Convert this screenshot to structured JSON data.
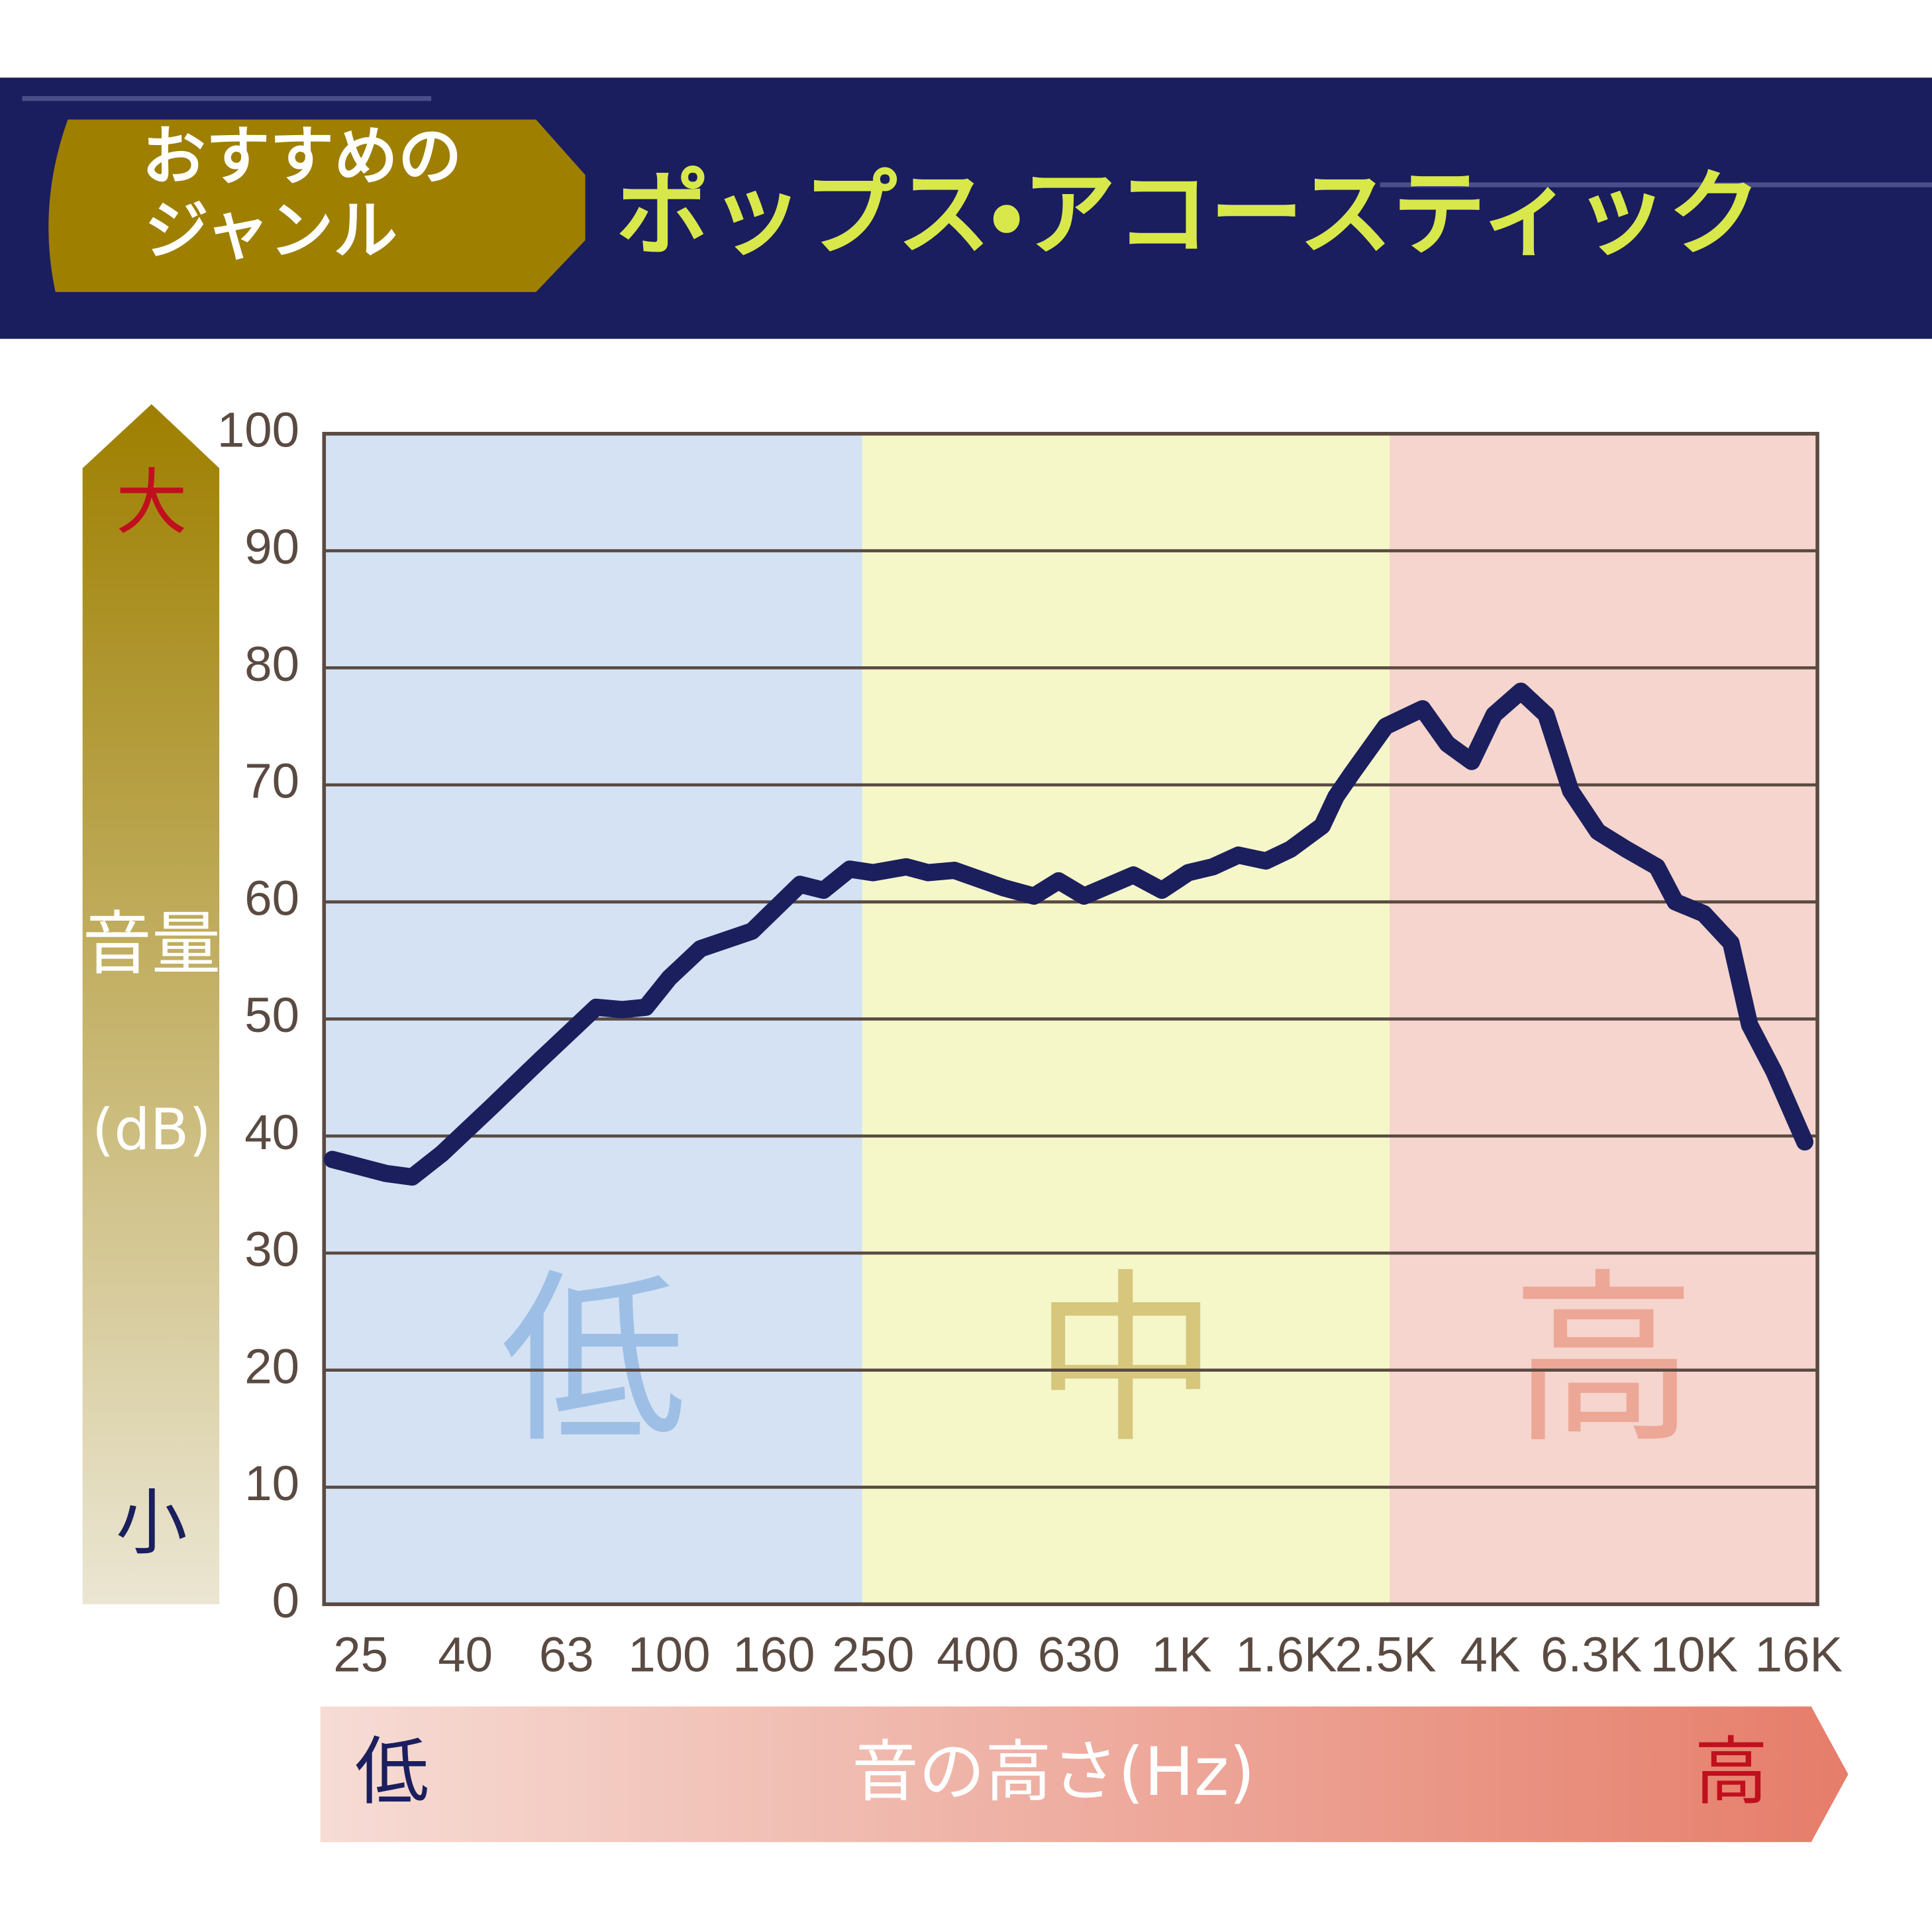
{
  "chart_data": {
    "type": "line",
    "title": "ポップス・アコースティック",
    "genre_label": [
      "おすすめの",
      "ジャンル"
    ],
    "y_label": [
      "音量",
      "(dB)"
    ],
    "y_high": "大",
    "y_low": "小",
    "x_label": "音の高さ(Hz)",
    "x_low": "低",
    "x_high": "高",
    "log_x": true,
    "grid": true,
    "color": "#1b1f5e",
    "x": [
      22,
      28,
      31.5,
      36,
      45,
      56,
      72,
      81,
      90,
      100,
      115,
      145,
      180,
      200,
      225,
      250,
      290,
      320,
      360,
      450,
      515,
      575,
      645,
      805,
      915,
      1030,
      1150,
      1290,
      1460,
      1630,
      1880,
      2000,
      2150,
      2500,
      2950,
      3300,
      3680,
      4070,
      4590,
      5140,
      5740,
      6490,
      7370,
      8460,
      9190,
      10440,
      11800,
      12830,
      14320,
      16440
    ],
    "values": [
      38,
      36.8,
      36.5,
      38.5,
      42.5,
      46.5,
      51,
      50.8,
      51,
      53.5,
      56,
      57.5,
      61.5,
      61,
      62.8,
      62.5,
      63,
      62.5,
      62.7,
      61.2,
      60.5,
      61.8,
      60.5,
      62.3,
      61,
      62.5,
      63,
      64,
      63.5,
      64.5,
      66.5,
      69,
      71,
      75,
      76.5,
      73.5,
      72,
      76,
      78,
      76,
      69.5,
      66,
      64.5,
      63,
      60,
      59,
      56.5,
      49.5,
      45.5,
      39.5
    ],
    "xlim": [
      21.2,
      17400
    ],
    "ylim": [
      0,
      100
    ],
    "yticks": [
      0,
      10,
      20,
      30,
      40,
      50,
      60,
      70,
      80,
      90,
      100
    ],
    "xticks": [
      25,
      40,
      63,
      100,
      160,
      250,
      400,
      630,
      {
        "value": 1000,
        "label": "1K"
      },
      {
        "value": 1600,
        "label": "1.6K"
      },
      {
        "value": 2500,
        "label": "2.5K"
      },
      {
        "value": 4000,
        "label": "4K"
      },
      {
        "value": 6300,
        "label": "6.3K"
      },
      {
        "value": 10000,
        "label": "10K"
      },
      {
        "value": 16000,
        "label": "16K"
      }
    ],
    "regions": [
      {
        "label": "低",
        "from": 21.2,
        "to": 238,
        "color": "#d4e2f3",
        "label_color": "#9dbfe6"
      },
      {
        "label": "中",
        "from": 238,
        "to": 2545,
        "color": "#f5f7c9",
        "label_color": "#d6c77c"
      },
      {
        "label": "高",
        "from": 2545,
        "to": 17400,
        "color": "#f5d5cd",
        "label_color": "#eda797"
      }
    ]
  }
}
